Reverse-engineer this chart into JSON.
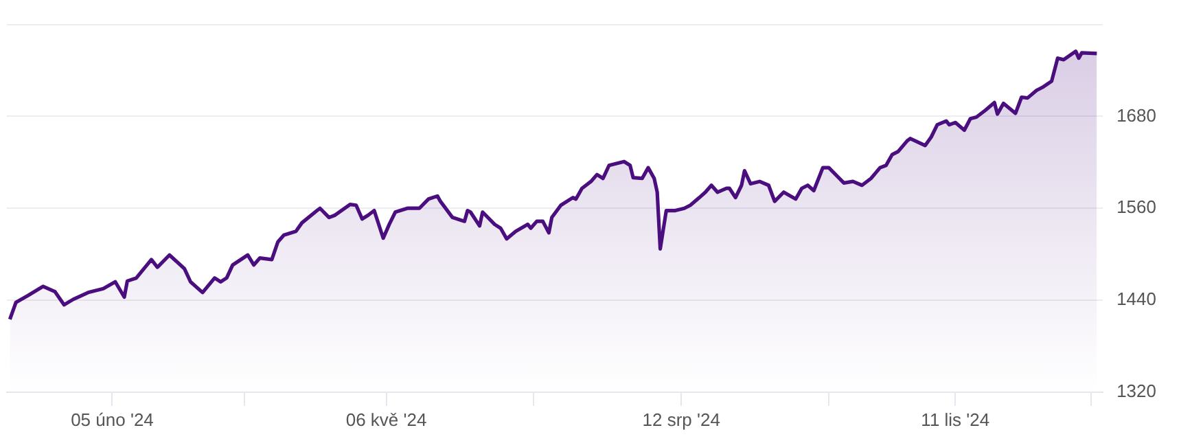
{
  "chart_data": {
    "type": "area",
    "x": [
      "2024-01-02",
      "2024-01-04",
      "2024-01-08",
      "2024-01-13",
      "2024-01-17",
      "2024-01-20",
      "2024-01-23",
      "2024-01-28",
      "2024-02-02",
      "2024-02-06",
      "2024-02-09",
      "2024-02-10",
      "2024-02-13",
      "2024-02-18",
      "2024-02-20",
      "2024-02-24",
      "2024-02-29",
      "2024-03-02",
      "2024-03-06",
      "2024-03-10",
      "2024-03-12",
      "2024-03-14",
      "2024-03-16",
      "2024-03-21",
      "2024-03-23",
      "2024-03-25",
      "2024-03-29",
      "2024-03-31",
      "2024-04-02",
      "2024-04-06",
      "2024-04-08",
      "2024-04-13",
      "2024-04-14",
      "2024-04-17",
      "2024-04-19",
      "2024-04-24",
      "2024-04-26",
      "2024-04-28",
      "2024-04-30",
      "2024-05-02",
      "2024-05-05",
      "2024-05-07",
      "2024-05-09",
      "2024-05-13",
      "2024-05-17",
      "2024-05-20",
      "2024-05-23",
      "2024-05-24",
      "2024-05-28",
      "2024-06-01",
      "2024-06-02",
      "2024-06-03",
      "2024-06-06",
      "2024-06-07",
      "2024-06-11",
      "2024-06-13",
      "2024-06-15",
      "2024-06-18",
      "2024-06-22",
      "2024-06-23",
      "2024-06-25",
      "2024-06-27",
      "2024-06-29",
      "2024-06-30",
      "2024-07-03",
      "2024-07-07",
      "2024-07-08",
      "2024-07-10",
      "2024-07-13",
      "2024-07-15",
      "2024-07-17",
      "2024-07-19",
      "2024-07-24",
      "2024-07-26",
      "2024-07-27",
      "2024-07-30",
      "2024-08-01",
      "2024-08-03",
      "2024-08-04",
      "2024-08-05",
      "2024-08-07",
      "2024-08-10",
      "2024-08-13",
      "2024-08-15",
      "2024-08-18",
      "2024-08-20",
      "2024-08-22",
      "2024-08-24",
      "2024-08-27",
      "2024-08-28",
      "2024-08-30",
      "2024-09-01",
      "2024-09-02",
      "2024-09-04",
      "2024-09-07",
      "2024-09-10",
      "2024-09-12",
      "2024-09-15",
      "2024-09-19",
      "2024-09-21",
      "2024-09-23",
      "2024-09-25",
      "2024-09-28",
      "2024-09-30",
      "2024-10-05",
      "2024-10-08",
      "2024-10-11",
      "2024-10-14",
      "2024-10-17",
      "2024-10-19",
      "2024-10-21",
      "2024-10-23",
      "2024-10-26",
      "2024-10-27",
      "2024-11-01",
      "2024-11-03",
      "2024-11-05",
      "2024-11-08",
      "2024-11-09",
      "2024-11-11",
      "2024-11-14",
      "2024-11-16",
      "2024-11-18",
      "2024-11-21",
      "2024-11-24",
      "2024-11-25",
      "2024-11-27",
      "2024-12-01",
      "2024-12-03",
      "2024-12-05",
      "2024-12-08",
      "2024-12-10",
      "2024-12-13",
      "2024-12-15",
      "2024-12-17",
      "2024-12-21",
      "2024-12-22",
      "2024-12-23",
      "2024-12-28"
    ],
    "series": [
      {
        "color": "#4a0e7e",
        "values": [
          1415,
          1437,
          1446,
          1458,
          1451,
          1434,
          1441,
          1450,
          1455,
          1464,
          1444,
          1465,
          1469,
          1493,
          1483,
          1499,
          1481,
          1464,
          1450,
          1469,
          1464,
          1469,
          1486,
          1499,
          1486,
          1495,
          1493,
          1516,
          1525,
          1530,
          1541,
          1557,
          1560,
          1548,
          1551,
          1565,
          1564,
          1546,
          1551,
          1557,
          1521,
          1539,
          1555,
          1560,
          1560,
          1572,
          1576,
          1569,
          1548,
          1543,
          1557,
          1555,
          1537,
          1555,
          1539,
          1534,
          1520,
          1530,
          1539,
          1534,
          1543,
          1543,
          1528,
          1548,
          1564,
          1574,
          1572,
          1586,
          1595,
          1604,
          1599,
          1616,
          1621,
          1616,
          1600,
          1599,
          1613,
          1599,
          1581,
          1507,
          1557,
          1557,
          1560,
          1564,
          1574,
          1581,
          1590,
          1581,
          1586,
          1586,
          1574,
          1590,
          1609,
          1592,
          1595,
          1590,
          1569,
          1581,
          1572,
          1586,
          1590,
          1583,
          1613,
          1613,
          1593,
          1595,
          1590,
          1599,
          1613,
          1616,
          1630,
          1634,
          1648,
          1651,
          1642,
          1653,
          1669,
          1674,
          1669,
          1672,
          1662,
          1677,
          1679,
          1688,
          1698,
          1683,
          1697,
          1684,
          1705,
          1704,
          1714,
          1718,
          1726,
          1756,
          1754,
          1765,
          1756,
          1763,
          1762
        ]
      }
    ],
    "xlim": [
      "2024-01-01",
      "2024-12-30"
    ],
    "xticks": [
      {
        "value": "2024-02-05",
        "label": "05 úno '24"
      },
      {
        "value": "2024-03-20",
        "label": null
      },
      {
        "value": "2024-05-06",
        "label": "06 kvě '24"
      },
      {
        "value": "2024-06-24",
        "label": null
      },
      {
        "value": "2024-08-12",
        "label": "12 srp '24"
      },
      {
        "value": "2024-09-30",
        "label": null
      },
      {
        "value": "2024-11-11",
        "label": "11 lis '24"
      },
      {
        "value": "2024-12-26",
        "label": null
      }
    ],
    "ylim": [
      1320,
      1800
    ],
    "yticks": [
      1320,
      1440,
      1560,
      1680,
      {
        "value": 1800,
        "label": null
      }
    ],
    "grid": "y",
    "legend": false
  }
}
